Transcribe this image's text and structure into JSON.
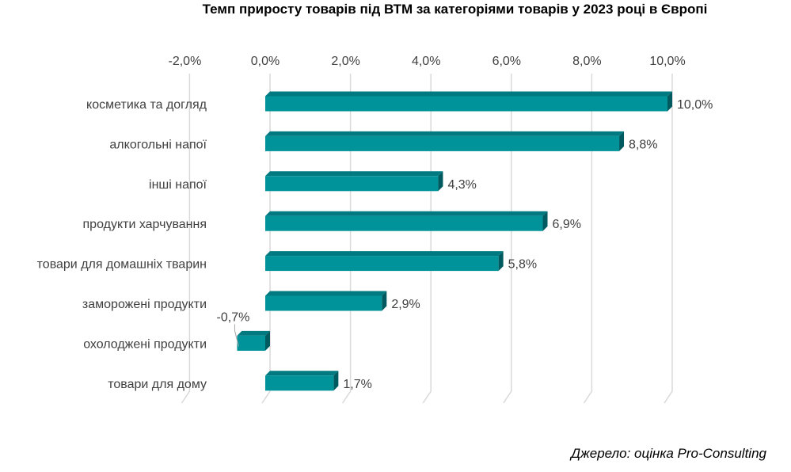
{
  "chart_data": {
    "type": "bar",
    "orientation": "horizontal",
    "title": "Темп приросту товарів під ВТМ за категоріями товарів у 2023 році в Європі",
    "categories": [
      "косметика та догляд",
      "алкогольні напої",
      "інші напої",
      "продукти харчування",
      "товари для домашніх тварин",
      "заморожені продукти",
      "охолоджені продукти",
      "товари для дому"
    ],
    "values": [
      10.0,
      8.8,
      4.3,
      6.9,
      5.8,
      2.9,
      -0.7,
      1.7
    ],
    "value_labels": [
      "10,0%",
      "8,8%",
      "4,3%",
      "6,9%",
      "5,8%",
      "2,9%",
      "-0,7%",
      "1,7%"
    ],
    "xlim": [
      -2.0,
      10.0
    ],
    "xticks": [
      -2,
      0,
      2,
      4,
      6,
      8,
      10
    ],
    "xtick_labels": [
      "-2,0%",
      "0,0%",
      "2,0%",
      "4,0%",
      "6,0%",
      "8,0%",
      "10,0%"
    ],
    "axis_position": "top",
    "grid": true,
    "style": "3d",
    "colors": {
      "bar_front": "#00939a",
      "bar_top": "#007a80",
      "bar_side": "#005a5f",
      "grid": "#d9d9d9",
      "text": "#404040"
    }
  },
  "source": "Джерело: оцінка Pro-Consulting"
}
